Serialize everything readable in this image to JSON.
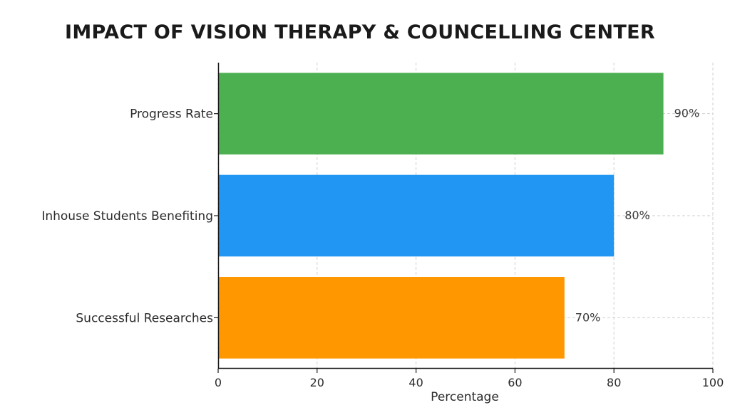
{
  "chart_data": {
    "type": "bar",
    "orientation": "horizontal",
    "title": "IMPACT OF VISION THERAPY & COUNCELLING CENTER",
    "xlabel": "Percentage",
    "ylabel": "",
    "categories": [
      "Progress Rate",
      "Inhouse Students Benefiting",
      "Successful Researches"
    ],
    "values": [
      90,
      80,
      70
    ],
    "value_labels": [
      "90%",
      "80%",
      "70%"
    ],
    "colors": [
      "#4caf50",
      "#2196f3",
      "#ff9800"
    ],
    "xlim": [
      0,
      100
    ],
    "xticks": [
      0,
      20,
      40,
      60,
      80,
      100
    ],
    "xtick_labels": [
      "0",
      "20",
      "40",
      "60",
      "80",
      "100"
    ],
    "grid": true
  }
}
